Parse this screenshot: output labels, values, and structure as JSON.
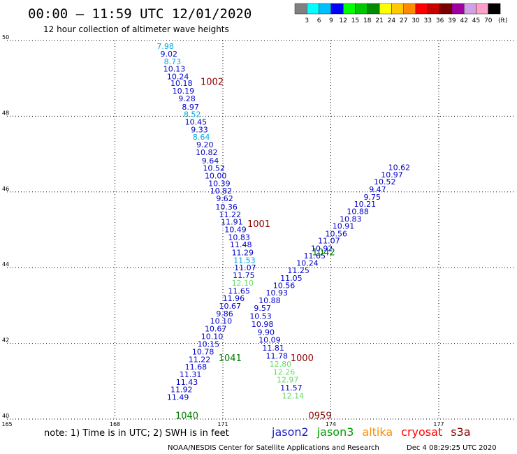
{
  "header": {
    "title": "00:00 – 11:59 UTC 12/01/2020",
    "subtitle": "12 hour collection of altimeter wave heights"
  },
  "colorbar": {
    "labels": [
      "3",
      "6",
      "9",
      "12",
      "15",
      "18",
      "21",
      "24",
      "27",
      "30",
      "33",
      "36",
      "39",
      "42",
      "45",
      "70"
    ],
    "colors": [
      "#808080",
      "#00ffff",
      "#00bfff",
      "#0000ff",
      "#00ff00",
      "#00c800",
      "#008c00",
      "#ffff00",
      "#ffc800",
      "#ff8c00",
      "#ff0000",
      "#c80000",
      "#780000",
      "#a000a0",
      "#d2a0e6",
      "#ffa0c8",
      "#000000"
    ],
    "unit": "(ft)"
  },
  "footer": {
    "note": "note: 1) Time is in UTC; 2) SWH is in feet",
    "legend": [
      {
        "name": "jason2",
        "color": "#1e1ec8"
      },
      {
        "name": "jason3",
        "color": "#00a000"
      },
      {
        "name": "altika",
        "color": "#ff8c00"
      },
      {
        "name": "cryosat",
        "color": "#ff0000"
      },
      {
        "name": "s3a",
        "color": "#8c0000"
      }
    ],
    "credit": "NOAA/NESDIS Center for Satellite Applications and Research",
    "timestamp": "Dec  4 08:29:25 UTC 2020"
  },
  "chart_data": {
    "type": "scatter",
    "x_ticks": [
      165,
      168,
      171,
      174,
      177
    ],
    "y_ticks": [
      40,
      42,
      44,
      46,
      48,
      50
    ],
    "xlim": [
      165,
      177
    ],
    "ylim": [
      40,
      50
    ],
    "grid": true,
    "pass_labels": [
      {
        "text": "1002",
        "lon": 170.7,
        "lat": 48.92,
        "color": "#8c0000"
      },
      {
        "text": "1001",
        "lon": 172.0,
        "lat": 45.17,
        "color": "#8c0000"
      },
      {
        "text": "1042",
        "lon": 173.8,
        "lat": 44.42,
        "color": "#008000"
      },
      {
        "text": "1041",
        "lon": 171.2,
        "lat": 41.62,
        "color": "#008000"
      },
      {
        "text": "1000",
        "lon": 173.2,
        "lat": 41.62,
        "color": "#8c0000"
      },
      {
        "text": "0959",
        "lon": 173.7,
        "lat": 40.1,
        "color": "#8c0000"
      },
      {
        "text": "1040",
        "lon": 170.0,
        "lat": 40.1,
        "color": "#008000"
      }
    ],
    "series": [
      {
        "name": "",
        "points": [
          {
            "lon": 169.4,
            "lat": 49.85,
            "v": "7.98",
            "c": "#00aadd"
          },
          {
            "lon": 169.5,
            "lat": 49.65,
            "v": "9.02",
            "c": "#0000cc"
          },
          {
            "lon": 169.6,
            "lat": 49.45,
            "v": "8.73",
            "c": "#00aadd"
          },
          {
            "lon": 169.65,
            "lat": 49.25,
            "v": "10.13",
            "c": "#0000cc"
          },
          {
            "lon": 169.75,
            "lat": 49.05,
            "v": "10.24",
            "c": "#0000cc"
          },
          {
            "lon": 169.85,
            "lat": 48.87,
            "v": "10.18",
            "c": "#0000cc"
          },
          {
            "lon": 169.9,
            "lat": 48.67,
            "v": "10.19",
            "c": "#0000cc"
          },
          {
            "lon": 170.0,
            "lat": 48.47,
            "v": "9.28",
            "c": "#0000cc"
          },
          {
            "lon": 170.1,
            "lat": 48.25,
            "v": "8.97",
            "c": "#0000cc"
          },
          {
            "lon": 170.15,
            "lat": 48.05,
            "v": "8.52",
            "c": "#00aadd"
          },
          {
            "lon": 170.25,
            "lat": 47.85,
            "v": "10.45",
            "c": "#0000cc"
          },
          {
            "lon": 170.35,
            "lat": 47.65,
            "v": "9.33",
            "c": "#0000cc"
          },
          {
            "lon": 170.4,
            "lat": 47.45,
            "v": "8.64",
            "c": "#00aadd"
          },
          {
            "lon": 170.5,
            "lat": 47.25,
            "v": "9.20",
            "c": "#0000cc"
          },
          {
            "lon": 170.55,
            "lat": 47.05,
            "v": "10.82",
            "c": "#0000cc"
          },
          {
            "lon": 170.65,
            "lat": 46.83,
            "v": "9.64",
            "c": "#0000cc"
          },
          {
            "lon": 170.75,
            "lat": 46.63,
            "v": "10.52",
            "c": "#0000cc"
          },
          {
            "lon": 170.8,
            "lat": 46.43,
            "v": "10.00",
            "c": "#0000cc"
          },
          {
            "lon": 170.9,
            "lat": 46.23,
            "v": "10.39",
            "c": "#0000cc"
          },
          {
            "lon": 170.95,
            "lat": 46.03,
            "v": "10.82",
            "c": "#0000cc"
          },
          {
            "lon": 171.05,
            "lat": 45.83,
            "v": "9.62",
            "c": "#0000cc"
          },
          {
            "lon": 171.1,
            "lat": 45.61,
            "v": "10.36",
            "c": "#0000cc"
          },
          {
            "lon": 171.2,
            "lat": 45.41,
            "v": "11.22",
            "c": "#0000cc"
          },
          {
            "lon": 171.25,
            "lat": 45.21,
            "v": "11.91",
            "c": "#0000cc"
          },
          {
            "lon": 171.35,
            "lat": 45.01,
            "v": "10.49",
            "c": "#0000cc"
          },
          {
            "lon": 171.45,
            "lat": 44.81,
            "v": "10.83",
            "c": "#0000cc"
          },
          {
            "lon": 171.5,
            "lat": 44.61,
            "v": "11.48",
            "c": "#0000cc"
          },
          {
            "lon": 171.55,
            "lat": 44.4,
            "v": "11.29",
            "c": "#0000cc"
          },
          {
            "lon": 171.6,
            "lat": 44.2,
            "v": "11.53",
            "c": "#00aadd"
          },
          {
            "lon": 171.62,
            "lat": 44.0,
            "v": "11.07",
            "c": "#0000cc"
          },
          {
            "lon": 171.58,
            "lat": 43.8,
            "v": "11.75",
            "c": "#0000cc"
          },
          {
            "lon": 171.55,
            "lat": 43.6,
            "v": "12.10",
            "c": "#66dd66"
          },
          {
            "lon": 171.45,
            "lat": 43.39,
            "v": "11.65",
            "c": "#0000cc"
          },
          {
            "lon": 171.3,
            "lat": 43.19,
            "v": "11.96",
            "c": "#0000cc"
          },
          {
            "lon": 171.2,
            "lat": 42.99,
            "v": "10.67",
            "c": "#0000cc"
          },
          {
            "lon": 171.05,
            "lat": 42.79,
            "v": "9.86",
            "c": "#0000cc"
          },
          {
            "lon": 170.95,
            "lat": 42.59,
            "v": "10.10",
            "c": "#0000cc"
          },
          {
            "lon": 170.8,
            "lat": 42.39,
            "v": "10.67",
            "c": "#0000cc"
          },
          {
            "lon": 170.7,
            "lat": 42.19,
            "v": "10.10",
            "c": "#0000cc"
          },
          {
            "lon": 170.6,
            "lat": 41.98,
            "v": "10.15",
            "c": "#0000cc"
          },
          {
            "lon": 170.45,
            "lat": 41.78,
            "v": "10.78",
            "c": "#0000cc"
          },
          {
            "lon": 170.35,
            "lat": 41.58,
            "v": "11.22",
            "c": "#0000cc"
          },
          {
            "lon": 170.25,
            "lat": 41.38,
            "v": "11.68",
            "c": "#0000cc"
          },
          {
            "lon": 170.1,
            "lat": 41.18,
            "v": "11.31",
            "c": "#0000cc"
          },
          {
            "lon": 170.0,
            "lat": 40.98,
            "v": "11.43",
            "c": "#0000cc"
          },
          {
            "lon": 169.85,
            "lat": 40.78,
            "v": "11.92",
            "c": "#0000cc"
          },
          {
            "lon": 169.75,
            "lat": 40.58,
            "v": "11.49",
            "c": "#0000cc"
          }
        ]
      },
      {
        "name": "",
        "points": [
          {
            "lon": 175.9,
            "lat": 46.65,
            "v": "10.62",
            "c": "#0000cc"
          },
          {
            "lon": 175.7,
            "lat": 46.46,
            "v": "10.97",
            "c": "#0000cc"
          },
          {
            "lon": 175.5,
            "lat": 46.27,
            "v": "10.52",
            "c": "#0000cc"
          },
          {
            "lon": 175.3,
            "lat": 46.07,
            "v": "9.47",
            "c": "#0000cc"
          },
          {
            "lon": 175.15,
            "lat": 45.87,
            "v": "9.75",
            "c": "#0000cc"
          },
          {
            "lon": 174.95,
            "lat": 45.68,
            "v": "10.21",
            "c": "#0000cc"
          },
          {
            "lon": 174.75,
            "lat": 45.49,
            "v": "10.88",
            "c": "#0000cc"
          },
          {
            "lon": 174.55,
            "lat": 45.29,
            "v": "10.83",
            "c": "#0000cc"
          },
          {
            "lon": 174.35,
            "lat": 45.1,
            "v": "10.91",
            "c": "#0000cc"
          },
          {
            "lon": 174.15,
            "lat": 44.9,
            "v": "10.56",
            "c": "#0000cc"
          },
          {
            "lon": 173.95,
            "lat": 44.71,
            "v": "11.07",
            "c": "#0000cc"
          },
          {
            "lon": 173.75,
            "lat": 44.51,
            "v": "10.92",
            "c": "#0000cc"
          },
          {
            "lon": 173.55,
            "lat": 44.32,
            "v": "11.65",
            "c": "#0000cc"
          },
          {
            "lon": 173.35,
            "lat": 44.12,
            "v": "10.24",
            "c": "#0000cc"
          },
          {
            "lon": 173.1,
            "lat": 43.93,
            "v": "11.25",
            "c": "#0000cc"
          },
          {
            "lon": 172.9,
            "lat": 43.73,
            "v": "11.05",
            "c": "#0000cc"
          },
          {
            "lon": 172.7,
            "lat": 43.53,
            "v": "10.56",
            "c": "#0000cc"
          },
          {
            "lon": 172.5,
            "lat": 43.34,
            "v": "10.93",
            "c": "#0000cc"
          },
          {
            "lon": 172.3,
            "lat": 43.14,
            "v": "10.88",
            "c": "#0000cc"
          },
          {
            "lon": 172.1,
            "lat": 42.93,
            "v": "9.57",
            "c": "#0000cc"
          },
          {
            "lon": 172.05,
            "lat": 42.72,
            "v": "10.53",
            "c": "#0000cc"
          },
          {
            "lon": 172.1,
            "lat": 42.51,
            "v": "10.98",
            "c": "#0000cc"
          },
          {
            "lon": 172.2,
            "lat": 42.3,
            "v": "9.90",
            "c": "#0000cc"
          },
          {
            "lon": 172.3,
            "lat": 42.09,
            "v": "10.09",
            "c": "#0000cc"
          },
          {
            "lon": 172.4,
            "lat": 41.88,
            "v": "11.81",
            "c": "#0000cc"
          },
          {
            "lon": 172.5,
            "lat": 41.67,
            "v": "11.78",
            "c": "#0000cc"
          },
          {
            "lon": 172.6,
            "lat": 41.46,
            "v": "12.80",
            "c": "#66dd66"
          },
          {
            "lon": 172.7,
            "lat": 41.25,
            "v": "12.26",
            "c": "#66dd66"
          },
          {
            "lon": 172.8,
            "lat": 41.04,
            "v": "12.97",
            "c": "#66dd66"
          },
          {
            "lon": 172.9,
            "lat": 40.83,
            "v": "11.57",
            "c": "#0000cc"
          },
          {
            "lon": 172.95,
            "lat": 40.62,
            "v": "12.14",
            "c": "#66dd66"
          }
        ]
      }
    ]
  }
}
